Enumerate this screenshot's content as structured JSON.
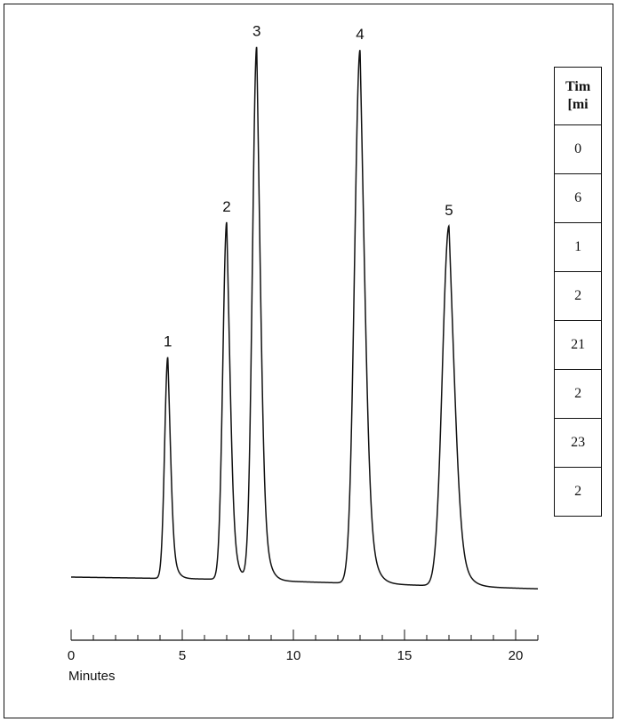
{
  "table": {
    "header_line1": "Tim",
    "header_line2": "[mi",
    "rows": [
      "0",
      "6",
      "1",
      "2",
      "21",
      "2",
      "23",
      "2"
    ]
  },
  "chart_data": {
    "type": "line",
    "title": "",
    "xlabel": "Minutes",
    "ylabel": "",
    "xlim": [
      0,
      21
    ],
    "ylim": [
      0,
      1
    ],
    "xticks": [
      0,
      5,
      10,
      15,
      20
    ],
    "grid": false,
    "baseline": [
      [
        0,
        0.03
      ],
      [
        6.5,
        0.026
      ],
      [
        21,
        0.008
      ]
    ],
    "peaks": [
      {
        "label": "1",
        "rt": 4.35,
        "height": 0.415
      },
      {
        "label": "2",
        "rt": 7.0,
        "height": 0.67
      },
      {
        "label": "3",
        "rt": 8.35,
        "height": 1.0
      },
      {
        "label": "4",
        "rt": 13.0,
        "height": 1.0
      },
      {
        "label": "5",
        "rt": 17.0,
        "height": 0.675
      }
    ]
  }
}
